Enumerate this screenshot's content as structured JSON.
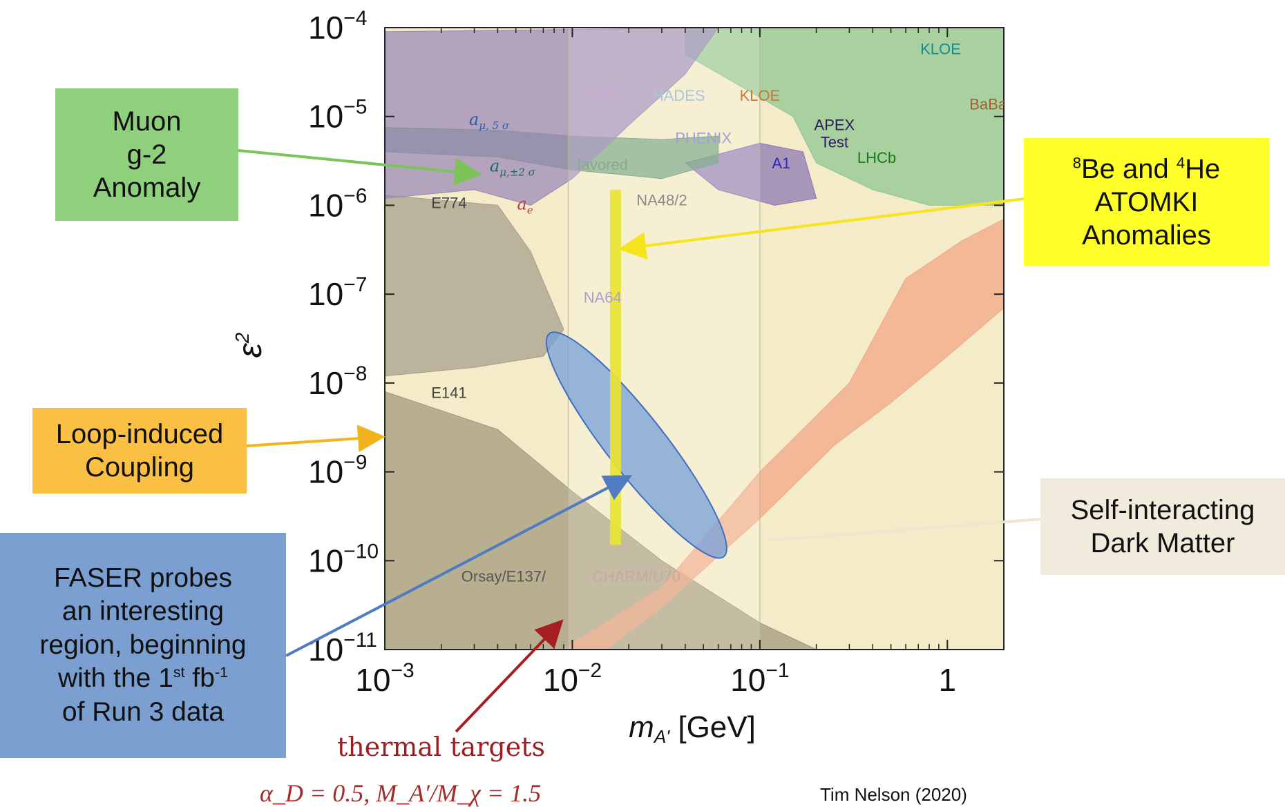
{
  "chart_data": {
    "type": "area",
    "title": "",
    "xlabel": "m_A' [GeV]",
    "ylabel": "ε²",
    "x_scale": "log",
    "y_scale": "log",
    "xlim": [
      0.001,
      2
    ],
    "ylim": [
      1e-11,
      0.0001
    ],
    "x_ticks": [
      {
        "value": 0.001,
        "label": "10",
        "exp": "−3"
      },
      {
        "value": 0.01,
        "label": "10",
        "exp": "−2"
      },
      {
        "value": 0.1,
        "label": "10",
        "exp": "−1"
      },
      {
        "value": 1,
        "label": "1",
        "exp": ""
      }
    ],
    "y_ticks": [
      {
        "value": 0.0001,
        "label": "10",
        "exp": "−4"
      },
      {
        "value": 1e-05,
        "label": "10",
        "exp": "−5"
      },
      {
        "value": 1e-06,
        "label": "10",
        "exp": "−6"
      },
      {
        "value": 1e-07,
        "label": "10",
        "exp": "−7"
      },
      {
        "value": 1e-08,
        "label": "10",
        "exp": "−8"
      },
      {
        "value": 1e-09,
        "label": "10",
        "exp": "−9"
      },
      {
        "value": 1e-10,
        "label": "10",
        "exp": "−10"
      },
      {
        "value": 1e-11,
        "label": "10",
        "exp": "−11"
      }
    ],
    "shaded_band_x": [
      0.0095,
      0.1
    ],
    "regions": [
      {
        "name": "beam-dump",
        "color": "#a0977a",
        "points": [
          [
            0.001,
            8e-09
          ],
          [
            0.004,
            3e-09
          ],
          [
            0.01,
            6e-10
          ],
          [
            0.03,
            1e-10
          ],
          [
            0.1,
            2e-11
          ],
          [
            0.2,
            1e-11
          ],
          [
            0.001,
            1e-11
          ]
        ]
      },
      {
        "name": "E774",
        "color": "#a59d8a",
        "points": [
          [
            0.001,
            1.3e-06
          ],
          [
            0.004,
            1e-06
          ],
          [
            0.006,
            3e-07
          ],
          [
            0.009,
            4e-08
          ],
          [
            0.007,
            2e-08
          ],
          [
            0.003,
            1.5e-08
          ],
          [
            0.001,
            1.2e-08
          ]
        ]
      },
      {
        "name": "thermal band",
        "color": "#f2a584",
        "points": [
          [
            0.0065,
            1e-11
          ],
          [
            0.009,
            1e-11
          ],
          [
            0.03,
            5e-11
          ],
          [
            0.1,
            1e-09
          ],
          [
            0.3,
            1e-08
          ],
          [
            0.6,
            1.5e-07
          ],
          [
            1.2,
            4e-07
          ],
          [
            2,
            7e-07
          ],
          [
            2,
            7e-08
          ],
          [
            1,
            2e-08
          ],
          [
            0.5,
            6e-09
          ],
          [
            0.25,
            2e-09
          ],
          [
            0.1,
            3e-10
          ],
          [
            0.03,
            3e-11
          ],
          [
            0.015,
            1e-11
          ]
        ]
      },
      {
        "name": "exclusion",
        "color": "#8cc58f",
        "points": [
          [
            0.04,
            5e-05
          ],
          [
            0.15,
            1e-05
          ],
          [
            0.2,
            3e-06
          ],
          [
            0.4,
            1.5e-06
          ],
          [
            0.8,
            1e-06
          ],
          [
            2,
            1e-06
          ],
          [
            2,
            0.0001
          ],
          [
            0.04,
            0.0001
          ]
        ]
      },
      {
        "name": "A1 region",
        "color": "#8a75b3",
        "points": [
          [
            0.04,
            3e-06
          ],
          [
            0.06,
            1.5e-06
          ],
          [
            0.12,
            1e-06
          ],
          [
            0.2,
            1.2e-06
          ],
          [
            0.17,
            4e-06
          ],
          [
            0.1,
            5e-06
          ]
        ]
      },
      {
        "name": "muon g-2 band",
        "color": "#6a9e7a",
        "points": [
          [
            0.001,
            4e-06
          ],
          [
            0.004,
            3.5e-06
          ],
          [
            0.01,
            2.5e-06
          ],
          [
            0.03,
            2e-06
          ],
          [
            0.06,
            3e-06
          ],
          [
            0.06,
            6e-06
          ],
          [
            0.03,
            5.5e-06
          ],
          [
            0.01,
            6e-06
          ],
          [
            0.004,
            7e-06
          ],
          [
            0.001,
            7.5e-06
          ]
        ]
      },
      {
        "name": "purple",
        "color": "#9a86b8",
        "points": [
          [
            0.001,
            9e-05
          ],
          [
            0.001,
            1.2e-06
          ],
          [
            0.003,
            1.5e-06
          ],
          [
            0.006,
            1e-06
          ],
          [
            0.01,
            2e-06
          ],
          [
            0.02,
            8e-06
          ],
          [
            0.04,
            3e-05
          ],
          [
            0.06,
            0.0001
          ]
        ]
      }
    ],
    "labels": [
      {
        "text": "KLOE",
        "x": 0.015,
        "y": 1.7e-05,
        "color": "#c7a9d9"
      },
      {
        "text": "HADES",
        "x": 0.037,
        "y": 1.5e-05,
        "color": "#a9c5df"
      },
      {
        "text": "KLOE",
        "x": 0.1,
        "y": 1.5e-05,
        "color": "#c8783c"
      },
      {
        "text": "KLOE",
        "x": 0.92,
        "y": 5e-05,
        "color": "#168c8e"
      },
      {
        "text": "BaBar",
        "x": 1.7,
        "y": 1.2e-05,
        "color": "#a65e2e"
      },
      {
        "text": "APEX",
        "x": 0.25,
        "y": 7e-06,
        "color": "#2d1b5e"
      },
      {
        "text": "Test",
        "x": 0.25,
        "y": 4.5e-06,
        "color": "#2d1b5e"
      },
      {
        "text": "PHENIX",
        "x": 0.05,
        "y": 5e-06,
        "color": "#a59fcf"
      },
      {
        "text": "A1",
        "x": 0.13,
        "y": 2.6e-06,
        "color": "#2a2ab5"
      },
      {
        "text": "LHCb",
        "x": 0.42,
        "y": 3e-06,
        "color": "#1a7a1a"
      },
      {
        "text": "favored",
        "x": 0.0145,
        "y": 2.5e-06,
        "color": "#8aa88e"
      },
      {
        "text": "NA48/2",
        "x": 0.03,
        "y": 1e-06,
        "color": "#8a8a8a"
      },
      {
        "text": "E774",
        "x": 0.0022,
        "y": 9.3e-07,
        "color": "#444444"
      },
      {
        "text": "NA64",
        "x": 0.0145,
        "y": 8e-08,
        "color": "#a9a3cf"
      },
      {
        "text": "E141",
        "x": 0.0022,
        "y": 6.8e-09,
        "color": "#444444"
      },
      {
        "text": "Orsay/E137/",
        "x": 0.0043,
        "y": 5.8e-11,
        "color": "#555555"
      },
      {
        "text": "CHARM/U70",
        "x": 0.022,
        "y": 5.8e-11,
        "color": "#c8a8a0"
      }
    ],
    "greek_labels": {
      "amu5": {
        "base": "a",
        "sub": "μ, 5 σ",
        "x": 0.0036,
        "y": 8e-06,
        "color": "#2f5aa0"
      },
      "amu2": {
        "base": "a",
        "sub": "μ,±2 σ",
        "x": 0.0048,
        "y": 2.4e-06,
        "color": "#1d6b55"
      },
      "ae": {
        "base": "a",
        "sub": "e",
        "x": 0.0056,
        "y": 9e-07,
        "color": "#b34040"
      }
    },
    "ellipse_color": "#7ba2da",
    "atomki_line": {
      "x": 0.017,
      "y_top": 1.5e-06,
      "y_bottom": 1.5e-10,
      "color": "#e9e433"
    }
  },
  "callouts": {
    "muon": [
      "Muon",
      "g-2",
      "Anomaly"
    ],
    "atomki": {
      "line1_pre": "8",
      "line1_a": "Be and ",
      "line1_sup2": "4",
      "line1_b": "He",
      "line2": "ATOMKI",
      "line3": "Anomalies"
    },
    "loop": [
      "Loop-induced",
      "Coupling"
    ],
    "sidm": [
      "Self-interacting",
      "Dark Matter"
    ],
    "faser": {
      "l1": "FASER probes",
      "l2": "an interesting",
      "l3": "region, beginning",
      "l4a": "with the 1",
      "l4sup": "st",
      "l4b": " fb",
      "l4sup2": "-1",
      "l5": "of Run 3 data"
    }
  },
  "arrow_colors": {
    "muon": "#7cc359",
    "atomki": "#f5e41e",
    "loop": "#f2b41c",
    "sidm": "#efe6d0",
    "faser": "#4e7bc1",
    "thermal": "#a41e22"
  },
  "thermal_label": "thermal targets",
  "thermal_formula": "α_D = 0.5, M_A′/M_χ = 1.5",
  "credit": "Tim Nelson (2020)"
}
